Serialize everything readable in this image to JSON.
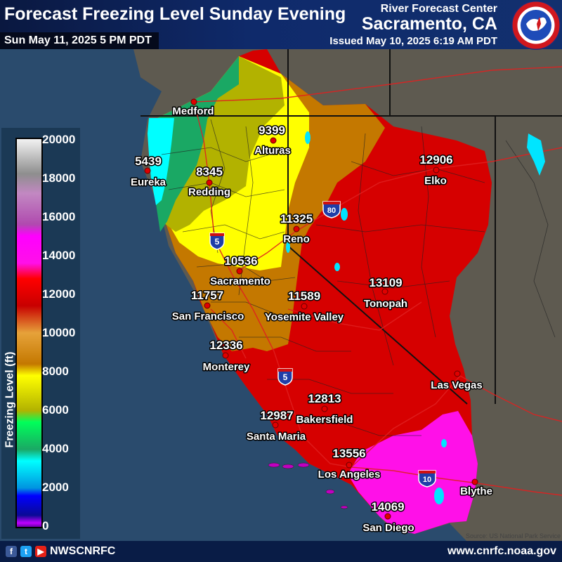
{
  "header": {
    "title": "Forecast Freezing Level Sunday Evening",
    "valid_time": "Sun May 11, 2025 5 PM PDT",
    "agency_line1": "River Forecast Center",
    "agency_line2": "Sacramento, CA",
    "issued": "Issued May 10, 2025 6:19 AM PDT",
    "logo_text": "NATIONAL WEATHER SERVICE"
  },
  "legend": {
    "title": "Freezing Level (ft)",
    "ticks": [
      "20000",
      "18000",
      "16000",
      "14000",
      "12000",
      "10000",
      "8000",
      "6000",
      "4000",
      "2000",
      "0"
    ]
  },
  "stations": [
    {
      "name": "Medford",
      "value": ""
    },
    {
      "name": "Alturas",
      "value": "9399"
    },
    {
      "name": "Eureka",
      "value": "5439"
    },
    {
      "name": "Redding",
      "value": "8345"
    },
    {
      "name": "Elko",
      "value": "12906"
    },
    {
      "name": "Reno",
      "value": "11325"
    },
    {
      "name": "Sacramento",
      "value": "10536"
    },
    {
      "name": "San Francisco",
      "value": "11757"
    },
    {
      "name": "Yosemite Valley",
      "value": "11589"
    },
    {
      "name": "Tonopah",
      "value": "13109"
    },
    {
      "name": "Monterey",
      "value": "12336"
    },
    {
      "name": "Las Vegas",
      "value": ""
    },
    {
      "name": "Bakersfield",
      "value": "12813"
    },
    {
      "name": "Santa Maria",
      "value": "12987"
    },
    {
      "name": "Los Angeles",
      "value": "13556"
    },
    {
      "name": "Blythe",
      "value": ""
    },
    {
      "name": "San Diego",
      "value": "14069"
    }
  ],
  "highways": [
    {
      "name": "interstate-80-shield",
      "label": "80"
    },
    {
      "name": "interstate-5-north-shield",
      "label": "5"
    },
    {
      "name": "interstate-5-south-shield",
      "label": "5"
    },
    {
      "name": "interstate-10-shield",
      "label": "10"
    }
  ],
  "map_credit": "Source: US National Park Service",
  "footer": {
    "social_icons": [
      "facebook-icon",
      "twitter-icon",
      "youtube-icon"
    ],
    "handle": "NWSCNRFC",
    "url": "www.cnrfc.noaa.gov"
  },
  "colors": {
    "ocean": "#2a4b6d",
    "land_outside": "#5e5a50",
    "band_4000_6000": "#00ffff",
    "band_6000_8000": "#1aa864",
    "band_8000_9000": "#b2b200",
    "band_9000_10000": "#ffff00",
    "band_10000_12000": "#c47800",
    "band_12000_14000": "#d60000",
    "band_14000_16000": "#ff10e8",
    "header_bg": "#0f2a6b",
    "footer_bg": "#091c46"
  }
}
